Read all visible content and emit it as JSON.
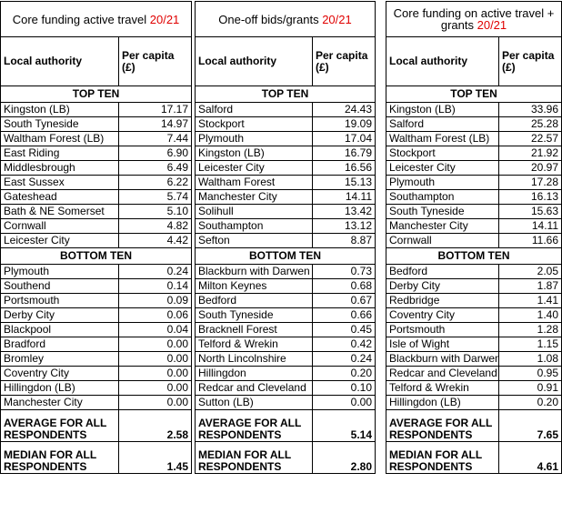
{
  "tables": [
    {
      "title": "Core funding active travel",
      "title_year": "20/21",
      "columns": [
        "Local authority",
        "Per capita (£)"
      ],
      "sections": [
        {
          "label": "TOP TEN",
          "rows": [
            [
              "Kingston (LB)",
              "17.17"
            ],
            [
              "South Tyneside",
              "14.97"
            ],
            [
              "Waltham Forest (LB)",
              "7.44"
            ],
            [
              "East Riding",
              "6.90"
            ],
            [
              "Middlesbrough",
              "6.49"
            ],
            [
              "East Sussex",
              "6.22"
            ],
            [
              "Gateshead",
              "5.74"
            ],
            [
              "Bath & NE Somerset",
              "5.10"
            ],
            [
              "Cornwall",
              "4.82"
            ],
            [
              "Leicester City",
              "4.42"
            ]
          ]
        },
        {
          "label": "BOTTOM TEN",
          "rows": [
            [
              "Plymouth",
              "0.24"
            ],
            [
              "Southend",
              "0.14"
            ],
            [
              "Portsmouth",
              "0.09"
            ],
            [
              "Derby City",
              "0.06"
            ],
            [
              "Blackpool",
              "0.04"
            ],
            [
              "Bradford",
              "0.00"
            ],
            [
              "Bromley",
              "0.00"
            ],
            [
              "Coventry City",
              "0.00"
            ],
            [
              "Hillingdon (LB)",
              "0.00"
            ],
            [
              "Manchester City",
              "0.00"
            ]
          ]
        }
      ],
      "summary": [
        {
          "label": "AVERAGE FOR ALL RESPONDENTS",
          "value": "2.58"
        },
        {
          "label": "MEDIAN FOR ALL RESPONDENTS",
          "value": "1.45"
        }
      ]
    },
    {
      "title": "One-off bids/grants",
      "title_year": "20/21",
      "columns": [
        "Local authority",
        "Per capita (£)"
      ],
      "sections": [
        {
          "label": "TOP TEN",
          "rows": [
            [
              "Salford",
              "24.43"
            ],
            [
              "Stockport",
              "19.09"
            ],
            [
              "Plymouth",
              "17.04"
            ],
            [
              "Kingston (LB)",
              "16.79"
            ],
            [
              "Leicester City",
              "16.56"
            ],
            [
              "Waltham Forest",
              "15.13"
            ],
            [
              "Manchester City",
              "14.11"
            ],
            [
              "Solihull",
              "13.42"
            ],
            [
              "Southampton",
              "13.12"
            ],
            [
              "Sefton",
              "8.87"
            ]
          ]
        },
        {
          "label": "BOTTOM TEN",
          "rows": [
            [
              "Blackburn with Darwen",
              "0.73"
            ],
            [
              "Milton Keynes",
              "0.68"
            ],
            [
              "Bedford",
              "0.67"
            ],
            [
              "South Tyneside",
              "0.66"
            ],
            [
              "Bracknell Forest",
              "0.45"
            ],
            [
              "Telford & Wrekin",
              "0.42"
            ],
            [
              "North Lincolnshire",
              "0.24"
            ],
            [
              "Hillingdon",
              "0.20"
            ],
            [
              "Redcar and Cleveland",
              "0.10"
            ],
            [
              "Sutton (LB)",
              "0.00"
            ]
          ]
        }
      ],
      "summary": [
        {
          "label": "AVERAGE FOR ALL RESPONDENTS",
          "value": "5.14"
        },
        {
          "label": "MEDIAN FOR ALL RESPONDENTS",
          "value": "2.80"
        }
      ]
    },
    {
      "title": "Core funding on active travel + grants",
      "title_year": "20/21",
      "columns": [
        "Local authority",
        "Per capita (£)"
      ],
      "sections": [
        {
          "label": "TOP TEN",
          "rows": [
            [
              "Kingston (LB)",
              "33.96"
            ],
            [
              "Salford",
              "25.28"
            ],
            [
              "Waltham Forest (LB)",
              "22.57"
            ],
            [
              "Stockport",
              "21.92"
            ],
            [
              "Leicester City",
              "20.97"
            ],
            [
              "Plymouth",
              "17.28"
            ],
            [
              "Southampton",
              "16.13"
            ],
            [
              "South Tyneside",
              "15.63"
            ],
            [
              "Manchester City",
              "14.11"
            ],
            [
              "Cornwall",
              "11.66"
            ]
          ]
        },
        {
          "label": "BOTTOM TEN",
          "rows": [
            [
              "Bedford",
              "2.05"
            ],
            [
              "Derby City",
              "1.87"
            ],
            [
              "Redbridge",
              "1.41"
            ],
            [
              "Coventry City",
              "1.40"
            ],
            [
              "Portsmouth",
              "1.28"
            ],
            [
              "Isle of Wight",
              "1.15"
            ],
            [
              "Blackburn with Darwen",
              "1.08"
            ],
            [
              "Redcar and Cleveland",
              "0.95"
            ],
            [
              "Telford & Wrekin",
              "0.91"
            ],
            [
              "Hillingdon (LB)",
              "0.20"
            ]
          ]
        }
      ],
      "summary": [
        {
          "label": "AVERAGE FOR ALL RESPONDENTS",
          "value": "7.65"
        },
        {
          "label": "MEDIAN FOR ALL RESPONDENTS",
          "value": "4.61"
        }
      ]
    }
  ]
}
